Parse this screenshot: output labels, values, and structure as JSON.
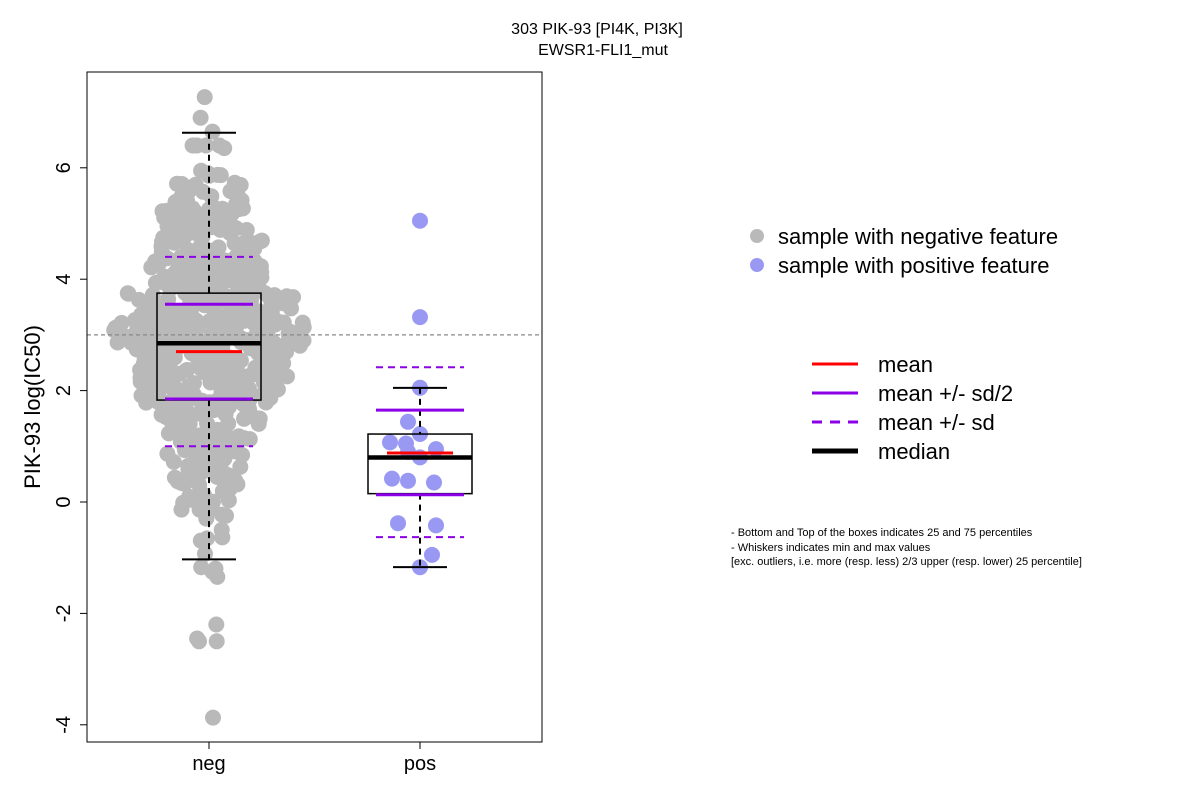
{
  "chart_data": {
    "type": "box",
    "title": "303 PIK-93 [PI4K, PI3K]",
    "subtitle": "EWSR1-FLI1_mut",
    "ylabel": "PIK-93 log(IC50)",
    "xlabel": "",
    "ylim": [
      -4.3,
      7.5
    ],
    "y_ticks": [
      -4,
      -2,
      0,
      2,
      4,
      6
    ],
    "reference_line": 3.0,
    "categories": [
      "neg",
      "pos"
    ],
    "groups": [
      {
        "name": "neg",
        "box": {
          "q1": 1.83,
          "median": 2.85,
          "q3": 3.75,
          "whisker_low": -1.03,
          "whisker_high": 6.63
        },
        "mean": 2.7,
        "mean_minus_sd_half": 1.85,
        "mean_plus_sd_half": 3.55,
        "mean_minus_sd": 1.0,
        "mean_plus_sd": 4.4,
        "point_count": 600,
        "points_min": -3.87,
        "points_max": 7.27
      },
      {
        "name": "pos",
        "box": {
          "q1": 0.15,
          "median": 0.8,
          "q3": 1.22,
          "whisker_low": -1.17,
          "whisker_high": 2.05
        },
        "mean": 0.88,
        "mean_minus_sd_half": 0.13,
        "mean_plus_sd_half": 1.65,
        "mean_minus_sd": -0.63,
        "mean_plus_sd": 2.42,
        "points": [
          5.05,
          3.32,
          2.05,
          1.44,
          1.22,
          1.07,
          1.05,
          0.95,
          0.9,
          0.8,
          0.42,
          0.38,
          0.35,
          -0.38,
          -0.42,
          -0.95,
          -1.17
        ]
      }
    ],
    "colors": {
      "negative_points": "#b9b9b9",
      "positive_points": "#9999f4",
      "mean": "#ff0000",
      "sd": "#8b00e6",
      "median": "#000000",
      "reference": "#888888"
    },
    "legend_placement": "right",
    "legend_points": [
      {
        "label": "sample with negative feature",
        "color": "#b9b9b9"
      },
      {
        "label": "sample with positive feature",
        "color": "#9999f4"
      }
    ],
    "legend_lines": [
      {
        "label": "mean",
        "color": "#ff0000",
        "style": "solid"
      },
      {
        "label": "mean +/- sd/2",
        "color": "#8b00e6",
        "style": "solid"
      },
      {
        "label": "mean +/- sd",
        "color": "#8b00e6",
        "style": "dashed"
      },
      {
        "label": "median",
        "color": "#000000",
        "style": "thick"
      }
    ],
    "notes": [
      "- Bottom and Top of the boxes indicates 25 and 75 percentiles",
      "- Whiskers indicates min and max values",
      "[exc. outliers, i.e. more (resp. less) 2/3 upper (resp. lower) 25 percentile]"
    ]
  }
}
